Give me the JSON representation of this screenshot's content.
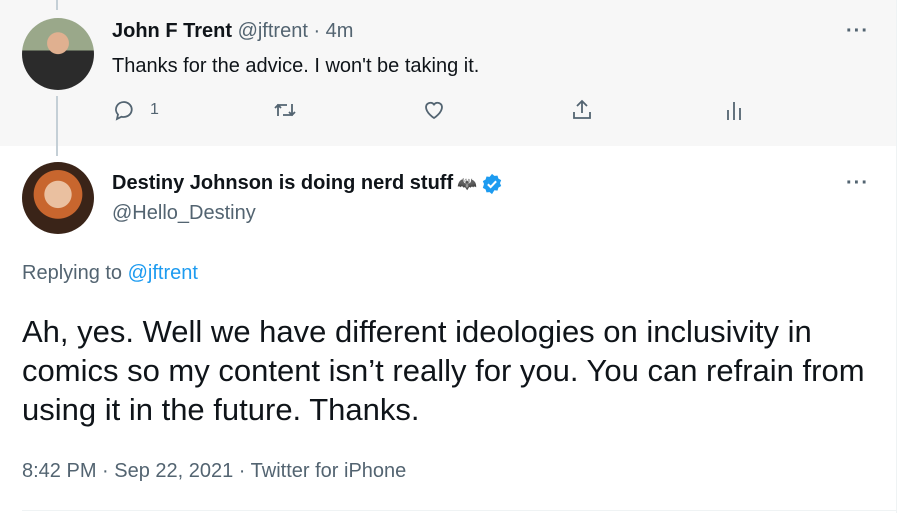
{
  "parent_tweet": {
    "name": "John F Trent",
    "handle": "@jftrent",
    "time": "· 4m",
    "text": "Thanks for the advice. I won't be taking it.",
    "reply_count": "1"
  },
  "main_tweet": {
    "name": "Destiny Johnson is doing nerd stuff",
    "name_emoji": "🦇",
    "handle": "@Hello_Destiny",
    "replying_label": "Replying to",
    "replying_handle": "@jftrent",
    "text": "Ah, yes. Well we have different ideologies on inclusivity in comics so my content isn’t really for you. You can refrain from using it in the future. Thanks.",
    "meta": "8:42 PM · Sep 22, 2021 · Twitter for iPhone"
  },
  "more_label": "···",
  "colors": {
    "accent": "#1d9bf0",
    "muted": "#536471",
    "top_bg": "#f7f7f7"
  }
}
